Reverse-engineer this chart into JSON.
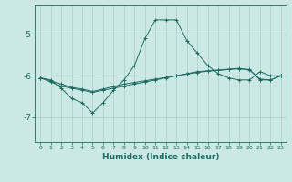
{
  "xlabel": "Humidex (Indice chaleur)",
  "bg_color": "#cce8e4",
  "grid_color": "#aaccca",
  "line_color": "#1a6b60",
  "xlim": [
    -0.5,
    23.5
  ],
  "ylim": [
    -7.6,
    -4.3
  ],
  "yticks": [
    -7,
    -6,
    -5
  ],
  "xticks": [
    0,
    1,
    2,
    3,
    4,
    5,
    6,
    7,
    8,
    9,
    10,
    11,
    12,
    13,
    14,
    15,
    16,
    17,
    18,
    19,
    20,
    21,
    22,
    23
  ],
  "series1_x": [
    0,
    1,
    2,
    3,
    4,
    5,
    6,
    7,
    8,
    9,
    10,
    11,
    12,
    13,
    14,
    15,
    16,
    17,
    18,
    19,
    20,
    21,
    22,
    23
  ],
  "series1_y": [
    -6.05,
    -6.1,
    -6.3,
    -6.55,
    -6.65,
    -6.9,
    -6.65,
    -6.35,
    -6.1,
    -5.75,
    -5.1,
    -4.65,
    -4.65,
    -4.65,
    -5.15,
    -5.45,
    -5.75,
    -5.95,
    -6.05,
    -6.1,
    -6.1,
    -5.9,
    -6.0,
    -6.0
  ],
  "series2_x": [
    0,
    1,
    2,
    3,
    4,
    5,
    6,
    7,
    8,
    9,
    10,
    11,
    12,
    13,
    14,
    15,
    16,
    17,
    18,
    19,
    20,
    21,
    22,
    23
  ],
  "series2_y": [
    -6.05,
    -6.15,
    -6.25,
    -6.3,
    -6.35,
    -6.4,
    -6.35,
    -6.3,
    -6.25,
    -6.2,
    -6.15,
    -6.1,
    -6.05,
    -6.0,
    -5.95,
    -5.9,
    -5.88,
    -5.86,
    -5.84,
    -5.82,
    -5.85,
    -6.1,
    -6.1,
    -6.0
  ],
  "series3_x": [
    0,
    1,
    2,
    3,
    4,
    5,
    6,
    7,
    8,
    9,
    10,
    11,
    12,
    13,
    14,
    15,
    16,
    17,
    18,
    19,
    20,
    21,
    22,
    23
  ],
  "series3_y": [
    -6.05,
    -6.12,
    -6.2,
    -6.28,
    -6.32,
    -6.38,
    -6.32,
    -6.26,
    -6.2,
    -6.16,
    -6.12,
    -6.08,
    -6.04,
    -6.0,
    -5.96,
    -5.92,
    -5.89,
    -5.87,
    -5.85,
    -5.83,
    -5.86,
    -6.08,
    -6.1,
    -6.0
  ]
}
